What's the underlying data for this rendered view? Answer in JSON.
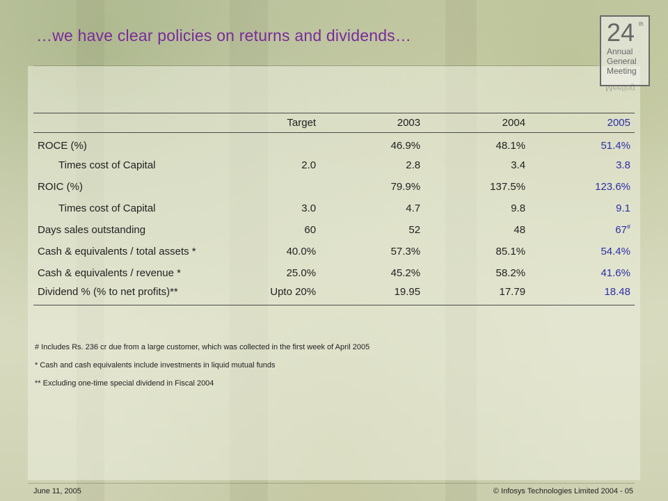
{
  "title": "…we have clear policies on returns and dividends…",
  "logo": {
    "number": "24",
    "suffix": "th",
    "lines": [
      "Annual",
      "General",
      "Meeting"
    ]
  },
  "table": {
    "headers": [
      "",
      "Target",
      "2003",
      "2004",
      "2005"
    ],
    "rows": [
      {
        "label": "ROCE (%)",
        "target": "",
        "y2003": "46.9%",
        "y2004": "48.1%",
        "y2005": "51.4%"
      },
      {
        "label": "Times cost of Capital",
        "target": "2.0",
        "y2003": "2.8",
        "y2004": "3.4",
        "y2005": "3.8"
      },
      {
        "label": "ROIC (%)",
        "target": "",
        "y2003": "79.9%",
        "y2004": "137.5%",
        "y2005": "123.6%"
      },
      {
        "label": "Times cost of Capital",
        "target": "3.0",
        "y2003": "4.7",
        "y2004": "9.8",
        "y2005": "9.1"
      },
      {
        "label": "Days sales outstanding",
        "target": "60",
        "y2003": "52",
        "y2004": "48",
        "y2005": "67",
        "y2005_mark": "#"
      },
      {
        "label": "Cash & equivalents / total assets *",
        "target": "40.0%",
        "y2003": "57.3%",
        "y2004": "85.1%",
        "y2005": "54.4%"
      },
      {
        "label": "Cash & equivalents / revenue *",
        "target": "25.0%",
        "y2003": "45.2%",
        "y2004": "58.2%",
        "y2005": "41.6%"
      },
      {
        "label": "Dividend % (% to net profits)**",
        "target": "Upto 20%",
        "y2003": "19.95",
        "y2004": "17.79",
        "y2005": "18.48"
      }
    ]
  },
  "notes": [
    "# Includes Rs. 236 cr due from a large customer, which was collected in the first week of April 2005",
    "* Cash and cash equivalents include investments in liquid mutual funds",
    "** Excluding one-time special dividend in Fiscal 2004"
  ],
  "footer": {
    "date": "June 11, 2005",
    "copyright": "© Infosys Technologies Limited 2004 - 05"
  },
  "colors": {
    "title": "#7a2a9a",
    "highlight": "#2b2fa8"
  }
}
